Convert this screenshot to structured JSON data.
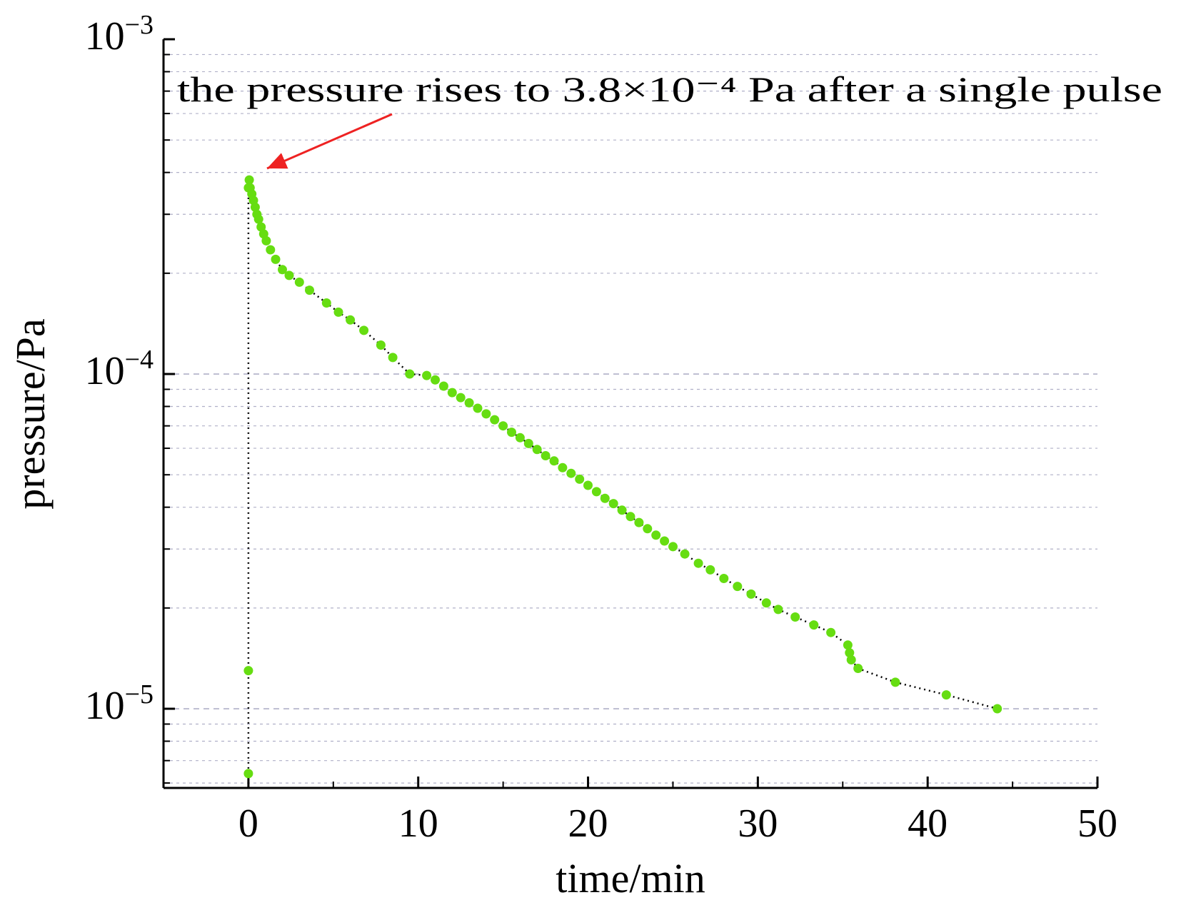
{
  "chart_data": {
    "type": "scatter",
    "xlabel": "time/min",
    "ylabel": "pressure/Pa",
    "xlim": [
      -5,
      50
    ],
    "ylim": [
      5.8e-06,
      0.001
    ],
    "y_scale": "log",
    "x_ticks": [
      0,
      10,
      20,
      30,
      40,
      50
    ],
    "y_ticks": [
      1e-05,
      0.0001,
      0.001
    ],
    "y_tick_labels": [
      {
        "base": "10",
        "exp": "−5"
      },
      {
        "base": "10",
        "exp": "−4"
      },
      {
        "base": "10",
        "exp": "−3"
      }
    ],
    "grid": "horizontal dashed",
    "annotation": "the pressure rises to 3.8×10⁻⁴ Pa after a single pulse",
    "colors": {
      "marker": "#66dd11",
      "arrow": "#ee2222",
      "line": "#000000",
      "grid": "#b0b0c8"
    },
    "series": [
      {
        "points": [
          [
            0.0,
            6.4e-06
          ],
          [
            0.0,
            1.3e-05
          ],
          [
            0.0,
            0.00036
          ],
          [
            0.05,
            0.00038
          ],
          [
            0.1,
            0.00036
          ],
          [
            0.2,
            0.000345
          ],
          [
            0.3,
            0.00033
          ],
          [
            0.4,
            0.000315
          ],
          [
            0.5,
            0.0003
          ],
          [
            0.6,
            0.00029
          ],
          [
            0.75,
            0.000275
          ],
          [
            0.9,
            0.000262
          ],
          [
            1.05,
            0.00025
          ],
          [
            1.3,
            0.000235
          ],
          [
            1.6,
            0.00022
          ],
          [
            2.0,
            0.000205
          ],
          [
            2.4,
            0.000197
          ],
          [
            3.0,
            0.000188
          ],
          [
            3.6,
            0.000178
          ],
          [
            4.6,
            0.000163
          ],
          [
            5.3,
            0.000153
          ],
          [
            6.0,
            0.000145
          ],
          [
            6.8,
            0.000135
          ],
          [
            7.8,
            0.000122
          ],
          [
            8.5,
            0.000112
          ],
          [
            9.5,
            0.0001
          ],
          [
            10.5,
            9.9e-05
          ],
          [
            11.0,
            9.6e-05
          ],
          [
            11.5,
            9.2e-05
          ],
          [
            12.0,
            8.8e-05
          ],
          [
            12.5,
            8.5e-05
          ],
          [
            13.0,
            8.2e-05
          ],
          [
            13.5,
            7.9e-05
          ],
          [
            14.0,
            7.6e-05
          ],
          [
            14.5,
            7.3e-05
          ],
          [
            15.0,
            7e-05
          ],
          [
            15.5,
            6.7e-05
          ],
          [
            16.0,
            6.45e-05
          ],
          [
            16.5,
            6.2e-05
          ],
          [
            17.0,
            5.95e-05
          ],
          [
            17.5,
            5.7e-05
          ],
          [
            18.0,
            5.5e-05
          ],
          [
            18.5,
            5.25e-05
          ],
          [
            19.0,
            5.05e-05
          ],
          [
            19.5,
            4.85e-05
          ],
          [
            20.0,
            4.65e-05
          ],
          [
            20.5,
            4.45e-05
          ],
          [
            21.0,
            4.25e-05
          ],
          [
            21.5,
            4.1e-05
          ],
          [
            22.0,
            3.92e-05
          ],
          [
            22.5,
            3.75e-05
          ],
          [
            23.0,
            3.6e-05
          ],
          [
            23.5,
            3.45e-05
          ],
          [
            24.0,
            3.3e-05
          ],
          [
            24.5,
            3.17e-05
          ],
          [
            25.0,
            3.05e-05
          ],
          [
            25.7,
            2.9e-05
          ],
          [
            26.5,
            2.72e-05
          ],
          [
            27.2,
            2.6e-05
          ],
          [
            28.0,
            2.45e-05
          ],
          [
            28.8,
            2.32e-05
          ],
          [
            29.6,
            2.2e-05
          ],
          [
            30.5,
            2.07e-05
          ],
          [
            31.2,
            1.98e-05
          ],
          [
            32.2,
            1.88e-05
          ],
          [
            33.3,
            1.78e-05
          ],
          [
            34.3,
            1.69e-05
          ],
          [
            35.3,
            1.55e-05
          ],
          [
            35.4,
            1.47e-05
          ],
          [
            35.5,
            1.4e-05
          ],
          [
            35.9,
            1.32e-05
          ],
          [
            38.1,
            1.2e-05
          ],
          [
            41.1,
            1.1e-05
          ],
          [
            44.1,
            1e-05
          ]
        ]
      }
    ]
  }
}
